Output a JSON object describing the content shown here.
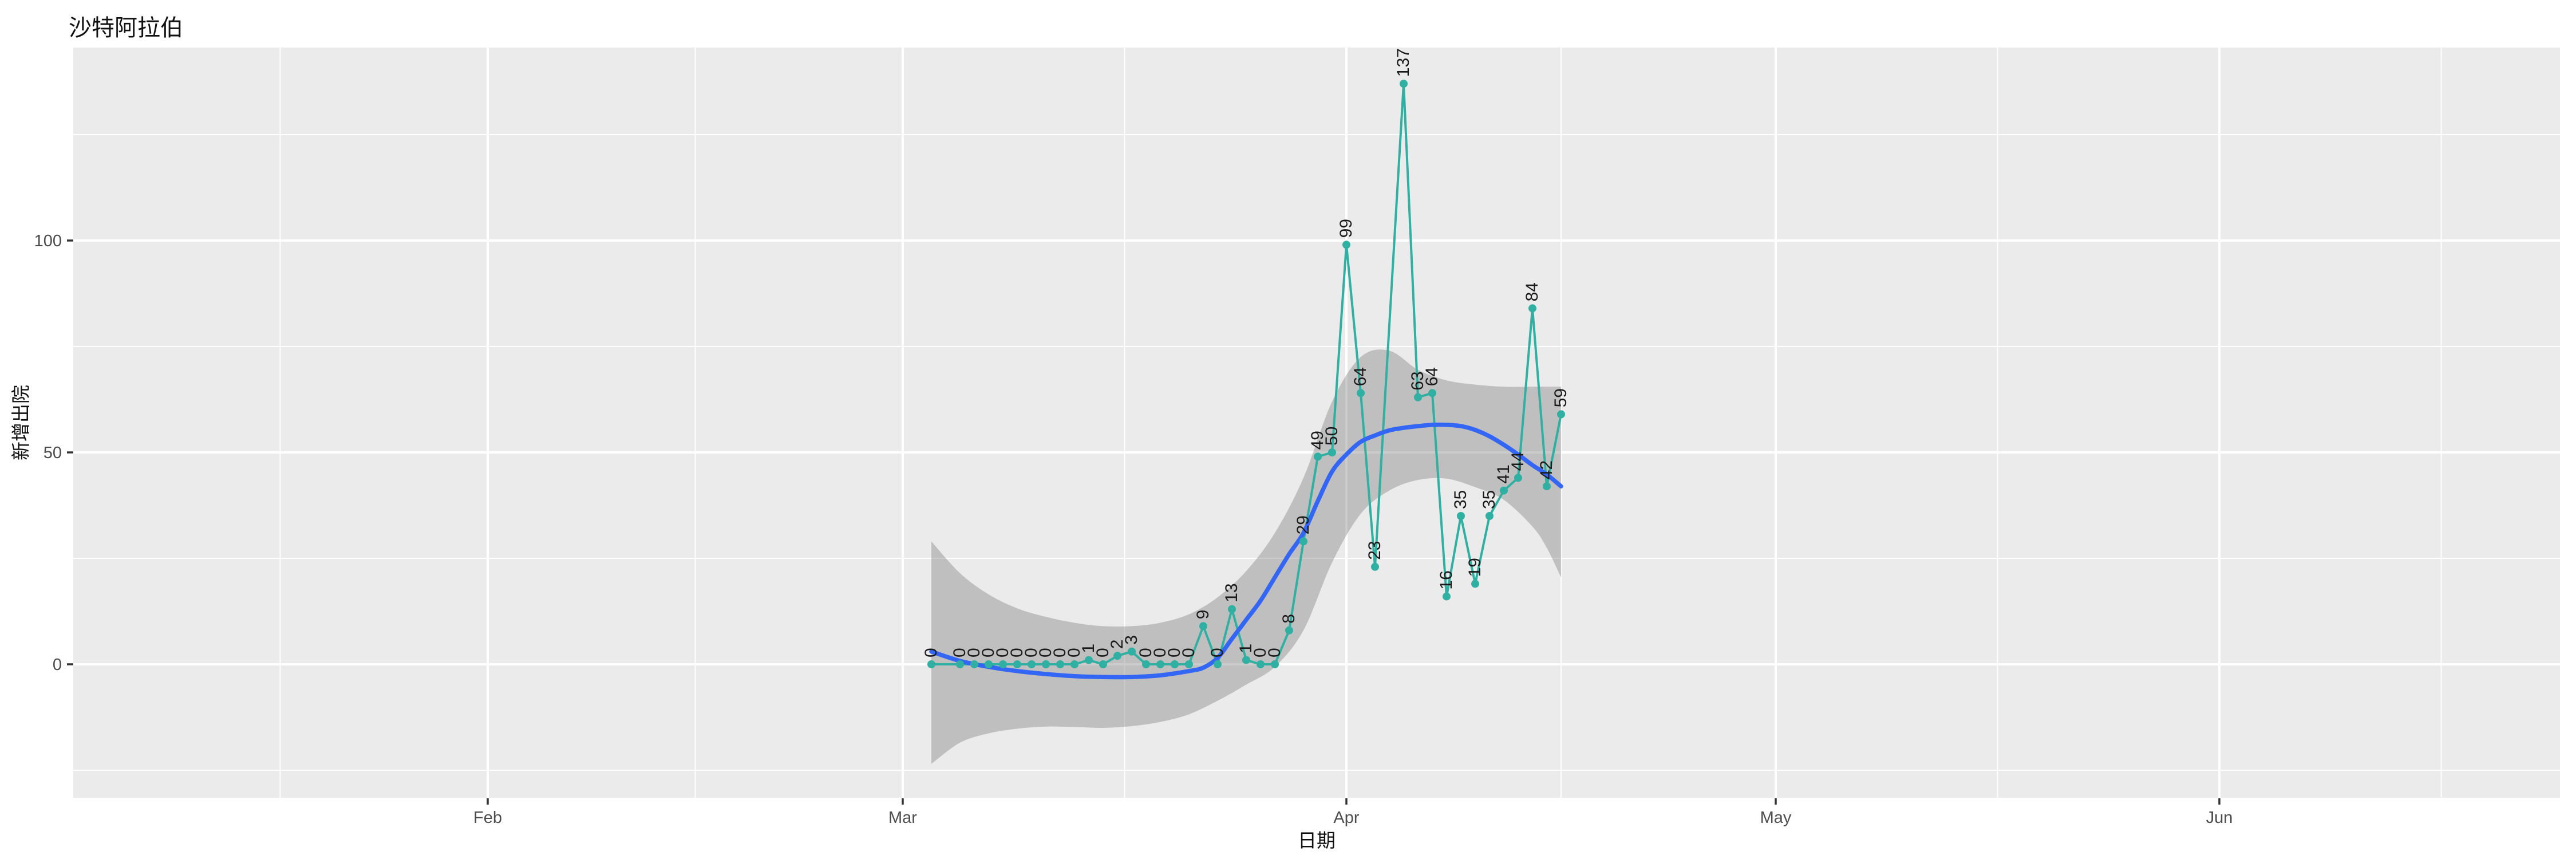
{
  "figure": {
    "title": "沙特阿拉伯",
    "xlabel": "日期",
    "ylabel": "新增出院"
  },
  "chart_data": {
    "type": "line",
    "title": "沙特阿拉伯",
    "xlabel": "日期",
    "ylabel": "新增出院",
    "legend": "none",
    "grid": "on",
    "xlim": [
      "2020-01-03",
      "2020-06-25"
    ],
    "ylim": [
      -31.5,
      145.5
    ],
    "x_ticks": [
      {
        "label": "Feb",
        "date": "2020-02-01"
      },
      {
        "label": "Mar",
        "date": "2020-03-01"
      },
      {
        "label": "Apr",
        "date": "2020-04-01"
      },
      {
        "label": "May",
        "date": "2020-05-01"
      },
      {
        "label": "Jun",
        "date": "2020-06-01"
      }
    ],
    "y_ticks": [
      0,
      50,
      100
    ],
    "y_minor_ticks": [
      -25,
      25,
      75,
      125
    ],
    "points": [
      {
        "date": "2020-03-03",
        "value": 0
      },
      {
        "date": "2020-03-05",
        "value": 0
      },
      {
        "date": "2020-03-06",
        "value": 0
      },
      {
        "date": "2020-03-07",
        "value": 0
      },
      {
        "date": "2020-03-08",
        "value": 0
      },
      {
        "date": "2020-03-09",
        "value": 0
      },
      {
        "date": "2020-03-10",
        "value": 0
      },
      {
        "date": "2020-03-11",
        "value": 0
      },
      {
        "date": "2020-03-12",
        "value": 0
      },
      {
        "date": "2020-03-13",
        "value": 0
      },
      {
        "date": "2020-03-14",
        "value": 1
      },
      {
        "date": "2020-03-15",
        "value": 0
      },
      {
        "date": "2020-03-16",
        "value": 2
      },
      {
        "date": "2020-03-17",
        "value": 3
      },
      {
        "date": "2020-03-18",
        "value": 0
      },
      {
        "date": "2020-03-19",
        "value": 0
      },
      {
        "date": "2020-03-20",
        "value": 0
      },
      {
        "date": "2020-03-21",
        "value": 0
      },
      {
        "date": "2020-03-22",
        "value": 9
      },
      {
        "date": "2020-03-23",
        "value": 0
      },
      {
        "date": "2020-03-24",
        "value": 13
      },
      {
        "date": "2020-03-25",
        "value": 1
      },
      {
        "date": "2020-03-26",
        "value": 0
      },
      {
        "date": "2020-03-27",
        "value": 0
      },
      {
        "date": "2020-03-28",
        "value": 8
      },
      {
        "date": "2020-03-29",
        "value": 29
      },
      {
        "date": "2020-03-30",
        "value": 49
      },
      {
        "date": "2020-03-31",
        "value": 50
      },
      {
        "date": "2020-04-01",
        "value": 99
      },
      {
        "date": "2020-04-02",
        "value": 64
      },
      {
        "date": "2020-04-03",
        "value": 23
      },
      {
        "date": "2020-04-05",
        "value": 137
      },
      {
        "date": "2020-04-06",
        "value": 63
      },
      {
        "date": "2020-04-07",
        "value": 64
      },
      {
        "date": "2020-04-08",
        "value": 16
      },
      {
        "date": "2020-04-09",
        "value": 35
      },
      {
        "date": "2020-04-10",
        "value": 19
      },
      {
        "date": "2020-04-11",
        "value": 35
      },
      {
        "date": "2020-04-12",
        "value": 41
      },
      {
        "date": "2020-04-13",
        "value": 44
      },
      {
        "date": "2020-04-14",
        "value": 84
      },
      {
        "date": "2020-04-15",
        "value": 42
      },
      {
        "date": "2020-04-16",
        "value": 59
      }
    ],
    "smooth": [
      {
        "date": "2020-03-03",
        "value": 3.0
      },
      {
        "date": "2020-03-05",
        "value": 0.8
      },
      {
        "date": "2020-03-07",
        "value": -0.6
      },
      {
        "date": "2020-03-09",
        "value": -1.6
      },
      {
        "date": "2020-03-11",
        "value": -2.3
      },
      {
        "date": "2020-03-13",
        "value": -2.8
      },
      {
        "date": "2020-03-15",
        "value": -3.0
      },
      {
        "date": "2020-03-17",
        "value": -3.0
      },
      {
        "date": "2020-03-19",
        "value": -2.6
      },
      {
        "date": "2020-03-21",
        "value": -1.6
      },
      {
        "date": "2020-03-22",
        "value": -0.8
      },
      {
        "date": "2020-03-23",
        "value": 1.5
      },
      {
        "date": "2020-03-24",
        "value": 6.0
      },
      {
        "date": "2020-03-25",
        "value": 10.5
      },
      {
        "date": "2020-03-26",
        "value": 15.0
      },
      {
        "date": "2020-03-27",
        "value": 20.5
      },
      {
        "date": "2020-03-28",
        "value": 26.0
      },
      {
        "date": "2020-03-29",
        "value": 31.0
      },
      {
        "date": "2020-03-30",
        "value": 38.5
      },
      {
        "date": "2020-03-31",
        "value": 45.5
      },
      {
        "date": "2020-04-01",
        "value": 49.5
      },
      {
        "date": "2020-04-02",
        "value": 52.5
      },
      {
        "date": "2020-04-03",
        "value": 54.0
      },
      {
        "date": "2020-04-04",
        "value": 55.2
      },
      {
        "date": "2020-04-05",
        "value": 55.8
      },
      {
        "date": "2020-04-06",
        "value": 56.2
      },
      {
        "date": "2020-04-07",
        "value": 56.5
      },
      {
        "date": "2020-04-08",
        "value": 56.5
      },
      {
        "date": "2020-04-09",
        "value": 56.2
      },
      {
        "date": "2020-04-10",
        "value": 55.3
      },
      {
        "date": "2020-04-11",
        "value": 53.8
      },
      {
        "date": "2020-04-12",
        "value": 51.8
      },
      {
        "date": "2020-04-13",
        "value": 49.5
      },
      {
        "date": "2020-04-14",
        "value": 47.0
      },
      {
        "date": "2020-04-15",
        "value": 44.8
      },
      {
        "date": "2020-04-16",
        "value": 42.0
      }
    ],
    "ribbon": [
      {
        "date": "2020-03-03",
        "lower": -23.5,
        "upper": 29.0
      },
      {
        "date": "2020-03-05",
        "lower": -18.5,
        "upper": 21.5
      },
      {
        "date": "2020-03-07",
        "lower": -16.3,
        "upper": 16.5
      },
      {
        "date": "2020-03-09",
        "lower": -15.2,
        "upper": 13.2
      },
      {
        "date": "2020-03-11",
        "lower": -14.7,
        "upper": 11.2
      },
      {
        "date": "2020-03-13",
        "lower": -14.8,
        "upper": 9.8
      },
      {
        "date": "2020-03-15",
        "lower": -15.0,
        "upper": 9.0
      },
      {
        "date": "2020-03-17",
        "lower": -14.6,
        "upper": 9.0
      },
      {
        "date": "2020-03-19",
        "lower": -13.6,
        "upper": 9.8
      },
      {
        "date": "2020-03-21",
        "lower": -11.8,
        "upper": 11.8
      },
      {
        "date": "2020-03-23",
        "lower": -8.6,
        "upper": 15.8
      },
      {
        "date": "2020-03-25",
        "lower": -4.8,
        "upper": 22.0
      },
      {
        "date": "2020-03-27",
        "lower": -0.6,
        "upper": 31.0
      },
      {
        "date": "2020-03-29",
        "lower": 8.0,
        "upper": 44.0
      },
      {
        "date": "2020-03-31",
        "lower": 24.0,
        "upper": 62.0
      },
      {
        "date": "2020-04-02",
        "lower": 35.5,
        "upper": 72.5
      },
      {
        "date": "2020-04-04",
        "lower": 41.0,
        "upper": 74.0
      },
      {
        "date": "2020-04-06",
        "lower": 43.5,
        "upper": 69.5
      },
      {
        "date": "2020-04-08",
        "lower": 43.8,
        "upper": 67.0
      },
      {
        "date": "2020-04-10",
        "lower": 41.8,
        "upper": 66.0
      },
      {
        "date": "2020-04-12",
        "lower": 38.8,
        "upper": 65.5
      },
      {
        "date": "2020-04-14",
        "lower": 32.5,
        "upper": 65.5
      },
      {
        "date": "2020-04-15",
        "lower": 27.5,
        "upper": 65.5
      },
      {
        "date": "2020-04-16",
        "lower": 20.5,
        "upper": 65.5
      }
    ],
    "colors": {
      "line": "#2FB0A2",
      "point": "#2FB0A2",
      "smooth_line": "#3366F5",
      "ribbon": "rgba(130,130,130,0.42)",
      "panel_background": "#EBEBEB",
      "gridline": "#FFFFFF",
      "point_label": "#1A1A1A",
      "axis_text": "#4D4D4D",
      "tick_mark": "#333333"
    }
  }
}
